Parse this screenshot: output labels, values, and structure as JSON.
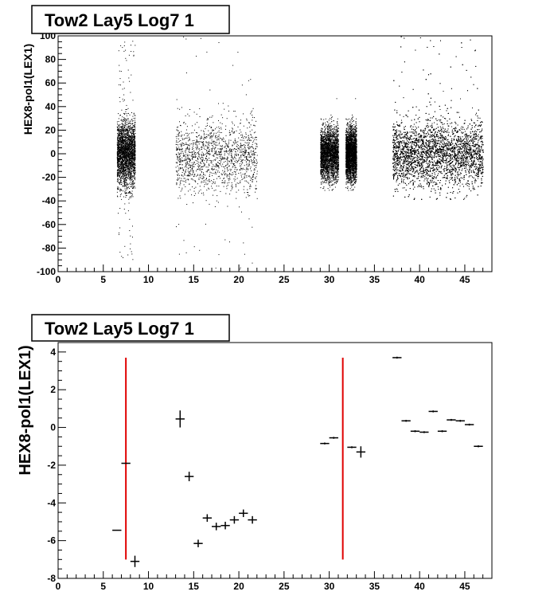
{
  "chart_data": [
    {
      "type": "scatter",
      "title": "Tow2 Lay5 Log7 1",
      "xlabel": "",
      "ylabel": "HEX8-pol1(LEX1)",
      "xlim": [
        0,
        48
      ],
      "ylim": [
        -100,
        100
      ],
      "xticks": [
        0,
        5,
        10,
        15,
        20,
        25,
        30,
        35,
        40,
        45
      ],
      "yticks": [
        -100,
        -80,
        -60,
        -40,
        -20,
        0,
        20,
        40,
        60,
        80,
        100
      ],
      "grid": false,
      "marker_color": "#000000",
      "clusters": [
        {
          "x_range": [
            6.5,
            8.5
          ],
          "core_y_range": [
            -25,
            25
          ],
          "density": "high",
          "tail_y_range": [
            -90,
            100
          ]
        },
        {
          "x_range": [
            13.0,
            22.0
          ],
          "core_y_range": [
            -30,
            25
          ],
          "density": "medium",
          "tail_y_range": [
            -100,
            100
          ]
        },
        {
          "x_range": [
            29.0,
            31.0
          ],
          "core_y_range": [
            -20,
            20
          ],
          "density": "high",
          "tail_y_range": [
            -25,
            25
          ]
        },
        {
          "x_range": [
            31.8,
            33.0
          ],
          "core_y_range": [
            -20,
            20
          ],
          "density": "high",
          "tail_y_range": [
            -25,
            25
          ]
        },
        {
          "x_range": [
            37.0,
            47.0
          ],
          "core_y_range": [
            -25,
            25
          ],
          "density": "very high",
          "tail_y_range": [
            -40,
            100
          ]
        }
      ]
    },
    {
      "type": "scatter",
      "title": "Tow2 Lay5 Log7 1",
      "xlabel": "",
      "ylabel": "HEX8-pol1(LEX1)",
      "xlim": [
        0,
        48
      ],
      "ylim": [
        -8,
        4.5
      ],
      "xticks": [
        0,
        5,
        10,
        15,
        20,
        25,
        30,
        35,
        40,
        45
      ],
      "yticks": [
        -8,
        -6,
        -4,
        -2,
        0,
        2,
        4
      ],
      "grid": false,
      "marker_color": "#000000",
      "points": [
        {
          "x": 6.5,
          "y": -5.45,
          "yerr": 0.0
        },
        {
          "x": 7.5,
          "y": -1.9,
          "yerr": 0.0
        },
        {
          "x": 8.5,
          "y": -7.1,
          "yerr": 0.3
        },
        {
          "x": 13.5,
          "y": 0.45,
          "yerr": 0.45
        },
        {
          "x": 14.5,
          "y": -2.6,
          "yerr": 0.25
        },
        {
          "x": 15.5,
          "y": -6.15,
          "yerr": 0.2
        },
        {
          "x": 16.5,
          "y": -4.8,
          "yerr": 0.2
        },
        {
          "x": 17.5,
          "y": -5.25,
          "yerr": 0.2
        },
        {
          "x": 18.5,
          "y": -5.2,
          "yerr": 0.2
        },
        {
          "x": 19.5,
          "y": -4.9,
          "yerr": 0.2
        },
        {
          "x": 20.5,
          "y": -4.55,
          "yerr": 0.2
        },
        {
          "x": 21.5,
          "y": -4.9,
          "yerr": 0.2
        },
        {
          "x": 29.5,
          "y": -0.85,
          "yerr": 0.05
        },
        {
          "x": 30.5,
          "y": -0.55,
          "yerr": 0.05
        },
        {
          "x": 32.5,
          "y": -1.05,
          "yerr": 0.05
        },
        {
          "x": 33.5,
          "y": -1.3,
          "yerr": 0.3
        },
        {
          "x": 37.5,
          "y": 3.7,
          "yerr": 0.05
        },
        {
          "x": 38.5,
          "y": 0.35,
          "yerr": 0.05
        },
        {
          "x": 39.5,
          "y": -0.2,
          "yerr": 0.05
        },
        {
          "x": 40.5,
          "y": -0.25,
          "yerr": 0.05
        },
        {
          "x": 41.5,
          "y": 0.85,
          "yerr": 0.05
        },
        {
          "x": 42.5,
          "y": -0.2,
          "yerr": 0.05
        },
        {
          "x": 43.5,
          "y": 0.4,
          "yerr": 0.05
        },
        {
          "x": 44.5,
          "y": 0.35,
          "yerr": 0.05
        },
        {
          "x": 45.5,
          "y": 0.15,
          "yerr": 0.05
        },
        {
          "x": 46.5,
          "y": -1.0,
          "yerr": 0.05
        }
      ],
      "vertical_lines": [
        {
          "x": 7.5,
          "y_range": [
            -7.0,
            3.7
          ],
          "color": "#e00000"
        },
        {
          "x": 31.5,
          "y_range": [
            -7.0,
            3.7
          ],
          "color": "#e00000"
        }
      ]
    }
  ]
}
